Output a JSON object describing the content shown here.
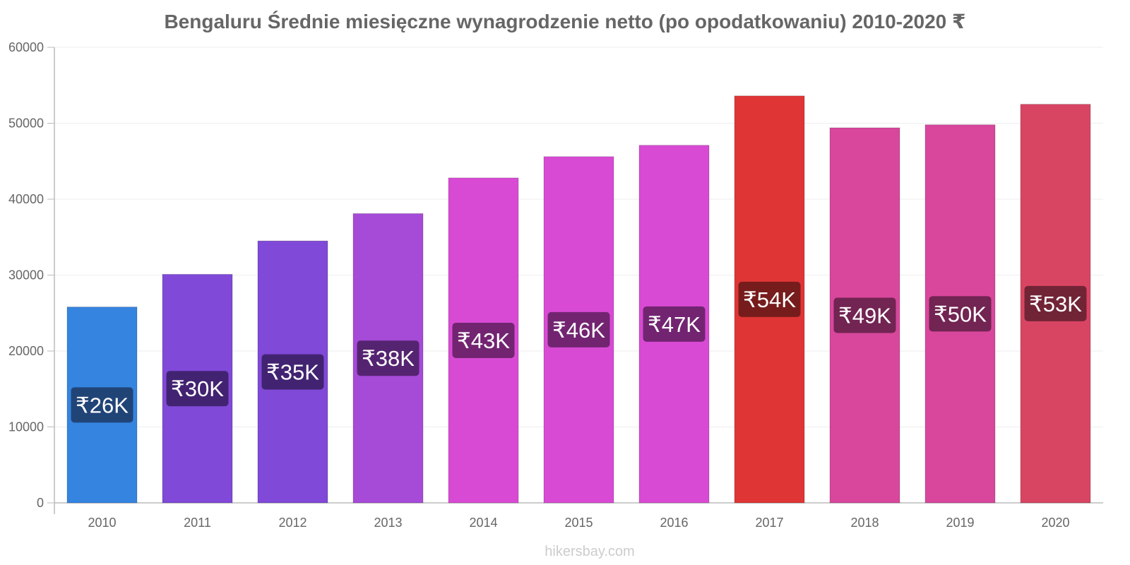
{
  "title": "Bengaluru Średnie miesięczne wynagrodzenie netto (po opodatkowaniu) 2010-2020 ₹",
  "watermark": "hikersbay.com",
  "chart_data": {
    "type": "bar",
    "title": "Bengaluru Średnie miesięczne wynagrodzenie netto (po opodatkowaniu) 2010-2020 ₹",
    "xlabel": "",
    "ylabel": "",
    "ylim": [
      0,
      60000
    ],
    "yticks": [
      0,
      10000,
      20000,
      30000,
      40000,
      50000,
      60000
    ],
    "grid": true,
    "categories": [
      "2010",
      "2011",
      "2012",
      "2013",
      "2014",
      "2015",
      "2016",
      "2017",
      "2018",
      "2019",
      "2020"
    ],
    "values": [
      25800,
      30100,
      34500,
      38100,
      42800,
      45600,
      47100,
      53600,
      49400,
      49800,
      52500
    ],
    "labels": [
      "₹26K",
      "₹30K",
      "₹35K",
      "₹38K",
      "₹43K",
      "₹46K",
      "₹47K",
      "₹54K",
      "₹49K",
      "₹50K",
      "₹53K"
    ],
    "bar_colors": [
      "#3584e0",
      "#8049d8",
      "#8049d8",
      "#a64ad8",
      "#d84ad4",
      "#d84ad4",
      "#d84ad4",
      "#e03535",
      "#d8479c",
      "#d8479c",
      "#d84562"
    ],
    "label_colors": [
      "#1f3f6e",
      "#3d2168",
      "#3d2168",
      "#4e2168",
      "#692168",
      "#692168",
      "#692168",
      "#6e1a1a",
      "#69224c",
      "#69224c",
      "#692233"
    ]
  }
}
